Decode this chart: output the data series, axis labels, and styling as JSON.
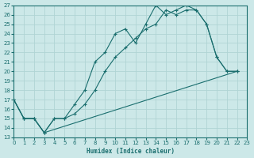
{
  "xlabel": "Humidex (Indice chaleur)",
  "bg_color": "#cce8e8",
  "line_color": "#1a6e6e",
  "grid_color": "#b0d4d4",
  "xlim": [
    0,
    23
  ],
  "ylim": [
    13,
    27
  ],
  "line1_x": [
    0,
    1,
    2,
    3,
    4,
    5,
    6,
    7,
    8,
    9,
    10,
    11,
    12,
    13,
    14,
    15,
    16,
    17,
    18,
    19,
    20,
    21,
    22
  ],
  "line1_y": [
    17,
    15,
    15,
    13.5,
    15,
    15,
    16.5,
    18,
    21,
    22,
    24,
    24.5,
    23,
    25,
    27,
    26,
    26.5,
    27,
    26.5,
    25,
    21.5,
    20,
    20
  ],
  "line2_x": [
    0,
    1,
    2,
    3,
    4,
    5,
    6,
    7,
    8,
    9,
    10,
    11,
    12,
    13,
    14,
    15,
    16,
    17,
    18,
    19,
    20,
    21,
    22
  ],
  "line2_y": [
    17,
    15,
    15,
    13.5,
    15,
    15,
    15.5,
    16.5,
    18,
    20,
    21.5,
    22.5,
    23.5,
    24.5,
    25,
    26.5,
    26,
    26.5,
    26.5,
    25,
    21.5,
    20,
    20
  ],
  "line3_x": [
    0,
    1,
    2,
    3,
    22
  ],
  "line3_y": [
    17,
    15,
    15,
    13.5,
    20
  ]
}
